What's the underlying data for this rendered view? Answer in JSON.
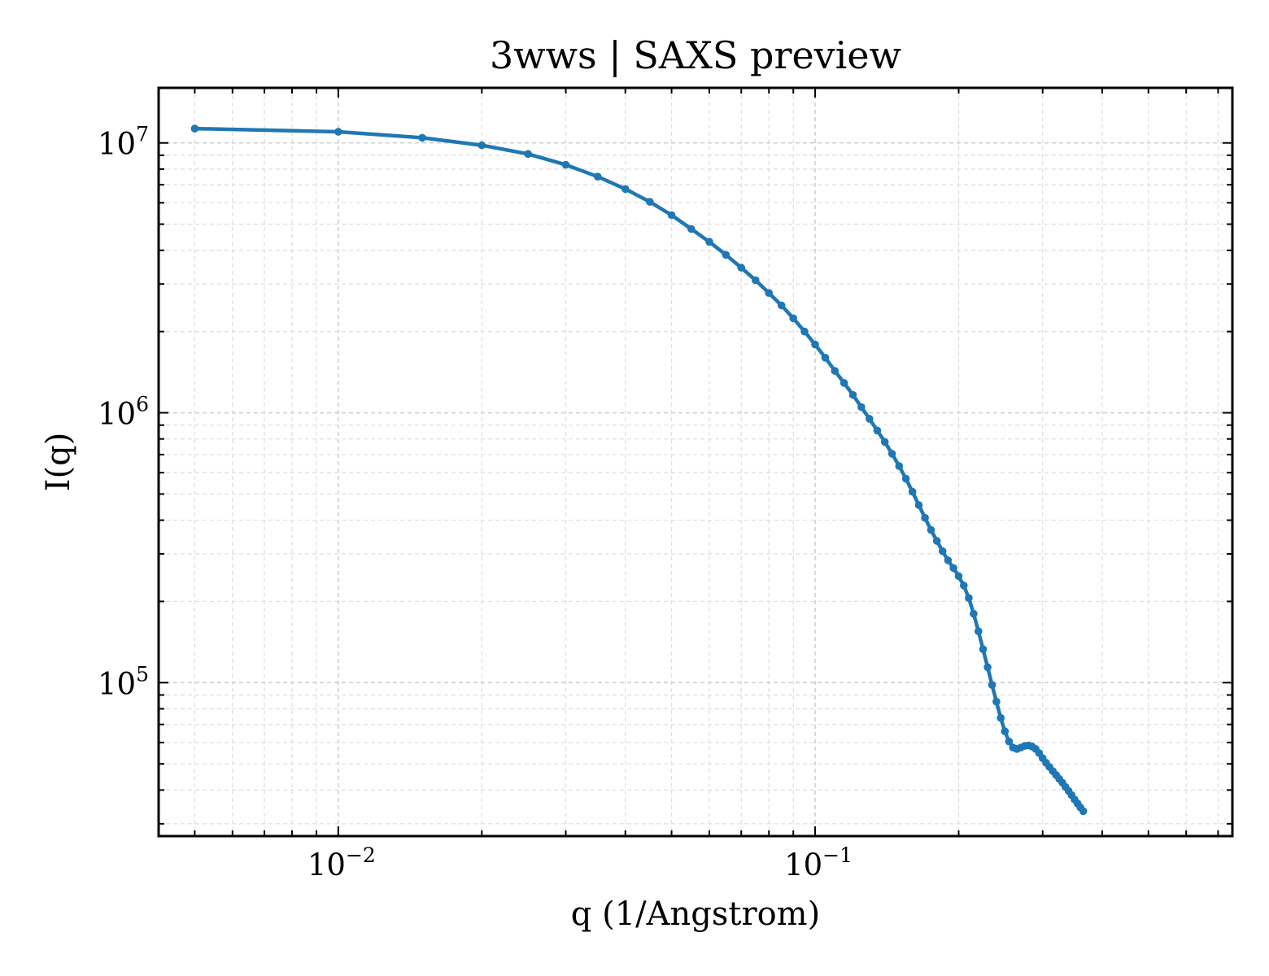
{
  "chart_data": {
    "type": "line",
    "title": "3wws | SAXS preview",
    "xlabel": "q (1/Angstrom)",
    "ylabel": "I(q)",
    "xscale": "log",
    "yscale": "log",
    "xlim": [
      0.0042,
      0.75
    ],
    "ylim": [
      27000,
      16000000
    ],
    "grid": true,
    "legend": "none",
    "line_color": "#1f77b4",
    "x_ticks": [
      {
        "value": 0.01,
        "base": "10",
        "exp": "−2"
      },
      {
        "value": 0.1,
        "base": "10",
        "exp": "−1"
      }
    ],
    "y_ticks": [
      {
        "value": 100000,
        "base": "10",
        "exp": "5"
      },
      {
        "value": 1000000,
        "base": "10",
        "exp": "6"
      },
      {
        "value": 10000000,
        "base": "10",
        "exp": "7"
      }
    ],
    "series": [
      {
        "marker": "circle",
        "points": [
          [
            0.005,
            11300000
          ],
          [
            0.01,
            11000000
          ],
          [
            0.015,
            10450000
          ],
          [
            0.02,
            9800000
          ],
          [
            0.025,
            9100000
          ],
          [
            0.03,
            8300000
          ],
          [
            0.035,
            7500000
          ],
          [
            0.04,
            6750000
          ],
          [
            0.045,
            6050000
          ],
          [
            0.05,
            5400000
          ],
          [
            0.055,
            4800000
          ],
          [
            0.06,
            4300000
          ],
          [
            0.065,
            3850000
          ],
          [
            0.07,
            3450000
          ],
          [
            0.075,
            3100000
          ],
          [
            0.08,
            2780000
          ],
          [
            0.085,
            2500000
          ],
          [
            0.09,
            2240000
          ],
          [
            0.095,
            2000000
          ],
          [
            0.1,
            1790000
          ],
          [
            0.105,
            1600000
          ],
          [
            0.11,
            1430000
          ],
          [
            0.115,
            1290000
          ],
          [
            0.12,
            1165000
          ],
          [
            0.125,
            1050000
          ],
          [
            0.13,
            950000
          ],
          [
            0.135,
            860000
          ],
          [
            0.14,
            780000
          ],
          [
            0.145,
            705000
          ],
          [
            0.15,
            635000
          ],
          [
            0.155,
            570000
          ],
          [
            0.16,
            510000
          ],
          [
            0.165,
            455000
          ],
          [
            0.17,
            408000
          ],
          [
            0.175,
            368000
          ],
          [
            0.18,
            335000
          ],
          [
            0.185,
            307000
          ],
          [
            0.19,
            284000
          ],
          [
            0.195,
            266000
          ],
          [
            0.2,
            248000
          ],
          [
            0.205,
            229000
          ],
          [
            0.21,
            206000
          ],
          [
            0.215,
            180000
          ],
          [
            0.22,
            155000
          ],
          [
            0.225,
            133000
          ],
          [
            0.23,
            114000
          ],
          [
            0.235,
            98000
          ],
          [
            0.24,
            85000
          ],
          [
            0.245,
            74000
          ],
          [
            0.25,
            66000
          ],
          [
            0.255,
            60500
          ],
          [
            0.26,
            57500
          ],
          [
            0.265,
            56800
          ],
          [
            0.27,
            57500
          ],
          [
            0.275,
            58300
          ],
          [
            0.28,
            58500
          ],
          [
            0.285,
            58000
          ],
          [
            0.29,
            56800
          ],
          [
            0.295,
            54800
          ],
          [
            0.3,
            52500
          ],
          [
            0.305,
            50500
          ],
          [
            0.31,
            48700
          ],
          [
            0.315,
            47000
          ],
          [
            0.32,
            45500
          ],
          [
            0.325,
            44000
          ],
          [
            0.33,
            42600
          ],
          [
            0.335,
            41100
          ],
          [
            0.34,
            39700
          ],
          [
            0.345,
            38300
          ],
          [
            0.35,
            36900
          ],
          [
            0.355,
            35700
          ],
          [
            0.36,
            34500
          ],
          [
            0.365,
            33400
          ]
        ]
      }
    ]
  }
}
